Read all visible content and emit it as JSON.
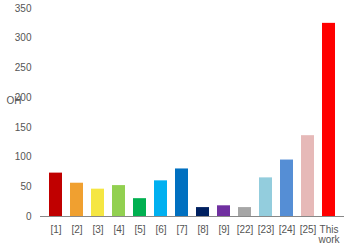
{
  "chart_data": {
    "type": "bar",
    "y_label": "OH",
    "categories": [
      "[1]",
      "[2]",
      "[3]",
      "[4]",
      "[5]",
      "[6]",
      "[7]",
      "[8]",
      "[9]",
      "[22]",
      "[23]",
      "[24]",
      "[25]",
      "This\nwork"
    ],
    "values": [
      73,
      56,
      46,
      52,
      30,
      60,
      80,
      15,
      18,
      15,
      65,
      95,
      136,
      325
    ],
    "colors": [
      "#c00000",
      "#f0a030",
      "#f5e642",
      "#92d050",
      "#00b050",
      "#00b0f0",
      "#0070c0",
      "#002060",
      "#7030a0",
      "#a6a6a6",
      "#93cddd",
      "#558ed5",
      "#e6b9b8",
      "#ff0000"
    ],
    "ylim": [
      0,
      350
    ],
    "yticks": [
      0,
      50,
      100,
      150,
      200,
      250,
      300,
      350
    ],
    "grid": false
  }
}
